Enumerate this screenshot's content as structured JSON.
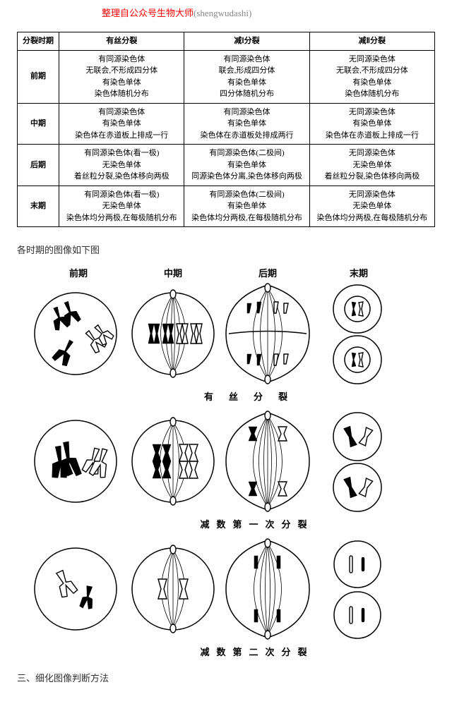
{
  "source": {
    "prefix": "整理自公众号生物大师",
    "suffix": "(shengwudashi)"
  },
  "table": {
    "headers": [
      "分裂时期",
      "有丝分裂",
      "减Ⅰ分裂",
      "减Ⅱ分裂"
    ],
    "rows": [
      {
        "phase": "前期",
        "mitosis": "有同源染色体\n无联会,不形成四分体\n有染色单体\n染色体随机分布",
        "meiosis1": "有同源染色体\n联会,形成四分体\n有染色单体\n四分体随机分布",
        "meiosis2": "无同源染色体\n无联会,不形成四分体\n有染色单体\n染色体随机分布"
      },
      {
        "phase": "中期",
        "mitosis": "有同源染色体\n有染色单体\n染色体在赤道板上排成一行",
        "meiosis1": "有同源染色体\n有染色单体\n染色体在赤道板处排成两行",
        "meiosis2": "无同源染色体\n有染色单体\n染色体在赤道板上排成一行"
      },
      {
        "phase": "后期",
        "mitosis": "有同源染色体(看一极)\n无染色单体\n着丝粒分裂,染色体移向两极",
        "meiosis1": "有同源染色体(二极间)\n有染色单体\n同源染色体分离,染色体移向两极",
        "meiosis2": "无同源染色体\n无染色单体\n着丝粒分裂,染色体移向两极"
      },
      {
        "phase": "末期",
        "mitosis": "有同源染色体(看一极)\n无染色单体\n染色体均分两极,在每极随机分布",
        "meiosis1": "有同源染色体(二极间)\n有染色单体\n染色体均分两极,在每极随机分布",
        "meiosis2": "无同源染色体\n无染色单体\n染色体均分两极,在每极随机分布"
      }
    ]
  },
  "caption": "各时期的图像如下图",
  "phases": {
    "p1": "前期",
    "p2": "中期",
    "p3": "后期",
    "p4": "末期"
  },
  "row_labels": {
    "r1": "有丝分裂",
    "r2": "减数第一次分裂",
    "r3": "减数第二次分裂"
  },
  "section3": "三、细化图像判断方法",
  "colors": {
    "accent": "#ff0000",
    "text": "#333333",
    "border": "#000000",
    "bg": "#ffffff"
  }
}
